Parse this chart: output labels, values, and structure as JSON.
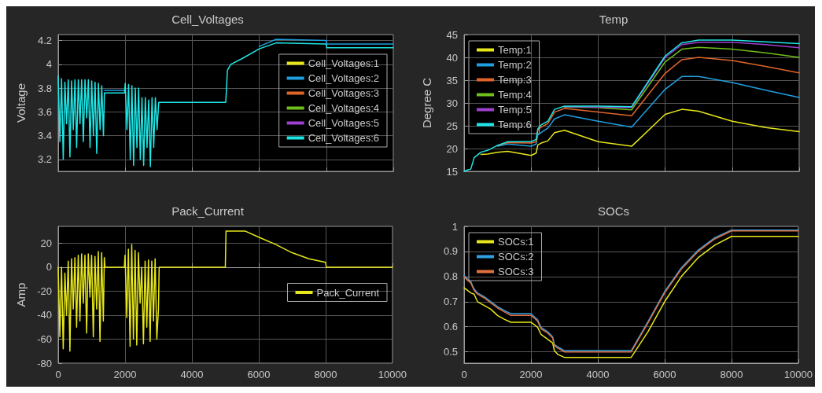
{
  "chart_data": [
    {
      "type": "line",
      "title": "Cell_Voltages",
      "ylabel": "Voltage",
      "xlim": [
        0,
        10000
      ],
      "xticks": [
        0,
        2000,
        4000,
        6000,
        8000,
        10000
      ],
      "ylim": [
        3.1,
        4.25
      ],
      "yticks": [
        3.2,
        3.4,
        3.6,
        3.8,
        4,
        4.2
      ],
      "grid": true,
      "legend": "right",
      "marker": "none",
      "line_style": "solid",
      "tick_labels": "y",
      "x": [
        0,
        50,
        100,
        150,
        200,
        250,
        300,
        350,
        400,
        450,
        500,
        550,
        600,
        650,
        700,
        750,
        800,
        850,
        900,
        950,
        1000,
        1050,
        1100,
        1150,
        1200,
        1250,
        1300,
        1350,
        1380,
        1980,
        2000,
        2050,
        2100,
        2150,
        2200,
        2250,
        2300,
        2350,
        2400,
        2450,
        2500,
        2550,
        2600,
        2650,
        2700,
        2750,
        2800,
        2850,
        2900,
        2950,
        3000,
        5000,
        5050,
        5150,
        5500,
        6000,
        6500,
        8000,
        8010,
        10000
      ],
      "series": [
        {
          "name": "Cell_Voltages:1",
          "color": "#e6e61a",
          "values": [
            null,
            null,
            null,
            null,
            null,
            null,
            null,
            null,
            null,
            null,
            null,
            null,
            null,
            null,
            null,
            null,
            null,
            null,
            null,
            null,
            null,
            null,
            null,
            null,
            null,
            null,
            null,
            null,
            null,
            null,
            null,
            null,
            null,
            null,
            null,
            null,
            null,
            null,
            null,
            null,
            null,
            null,
            null,
            null,
            null,
            null,
            null,
            null,
            null,
            null,
            null,
            null,
            null,
            null,
            null,
            null,
            null,
            null,
            null,
            null
          ]
        },
        {
          "name": "Cell_Voltages:2",
          "color": "#1f9fe0",
          "values": [
            null,
            null,
            null,
            null,
            null,
            null,
            null,
            null,
            null,
            null,
            null,
            null,
            null,
            null,
            null,
            null,
            null,
            null,
            null,
            null,
            null,
            null,
            null,
            null,
            null,
            null,
            null,
            null,
            3.78,
            3.78,
            null,
            null,
            null,
            null,
            null,
            null,
            null,
            null,
            null,
            null,
            null,
            null,
            null,
            null,
            null,
            null,
            null,
            null,
            null,
            null,
            null,
            null,
            null,
            null,
            null,
            4.15,
            4.21,
            4.2,
            4.17,
            4.17
          ]
        },
        {
          "name": "Cell_Voltages:3",
          "color": "#e0642a",
          "values": [
            null,
            null,
            null,
            null,
            null,
            null,
            null,
            null,
            null,
            null,
            null,
            null,
            null,
            null,
            null,
            null,
            null,
            null,
            null,
            null,
            null,
            null,
            null,
            null,
            null,
            null,
            null,
            null,
            null,
            null,
            null,
            null,
            null,
            null,
            null,
            null,
            null,
            null,
            null,
            null,
            null,
            null,
            null,
            null,
            null,
            null,
            null,
            null,
            null,
            null,
            null,
            null,
            null,
            null,
            null,
            null,
            null,
            null,
            null,
            null
          ]
        },
        {
          "name": "Cell_Voltages:4",
          "color": "#6fbf1a",
          "values": [
            null,
            null,
            null,
            null,
            null,
            null,
            null,
            null,
            null,
            null,
            null,
            null,
            null,
            null,
            null,
            null,
            null,
            null,
            null,
            null,
            null,
            null,
            null,
            null,
            null,
            null,
            null,
            null,
            null,
            null,
            null,
            null,
            null,
            null,
            null,
            null,
            null,
            null,
            null,
            null,
            null,
            null,
            null,
            null,
            null,
            null,
            null,
            null,
            null,
            null,
            null,
            null,
            null,
            null,
            null,
            null,
            null,
            null,
            null,
            null
          ]
        },
        {
          "name": "Cell_Voltages:5",
          "color": "#a040d0",
          "values": [
            null,
            null,
            null,
            null,
            null,
            null,
            null,
            null,
            null,
            null,
            null,
            null,
            null,
            null,
            null,
            null,
            null,
            null,
            null,
            null,
            null,
            null,
            null,
            null,
            null,
            null,
            null,
            null,
            null,
            null,
            null,
            null,
            null,
            null,
            null,
            null,
            null,
            null,
            null,
            null,
            null,
            null,
            null,
            null,
            null,
            null,
            null,
            null,
            null,
            null,
            null,
            null,
            null,
            null,
            null,
            null,
            null,
            null,
            null,
            null
          ]
        },
        {
          "name": "Cell_Voltages:6",
          "color": "#1ee6e6",
          "values": [
            3.9,
            3.35,
            3.88,
            3.2,
            3.85,
            3.5,
            3.87,
            3.22,
            3.86,
            3.45,
            3.87,
            3.3,
            3.87,
            3.5,
            3.87,
            3.35,
            3.87,
            3.55,
            3.87,
            3.3,
            3.86,
            3.4,
            3.85,
            3.25,
            3.84,
            3.45,
            3.82,
            3.4,
            3.76,
            3.76,
            3.84,
            3.45,
            3.83,
            3.2,
            3.82,
            3.15,
            3.8,
            3.3,
            3.8,
            3.2,
            3.72,
            3.15,
            3.72,
            3.3,
            3.7,
            3.14,
            3.72,
            3.3,
            3.72,
            3.45,
            3.68,
            3.68,
            3.95,
            4.0,
            4.05,
            4.13,
            4.18,
            4.17,
            4.14,
            4.14
          ]
        }
      ]
    },
    {
      "type": "line",
      "title": "Temp",
      "ylabel": "Degree C",
      "xlim": [
        0,
        10000
      ],
      "xticks": [
        0,
        2000,
        4000,
        6000,
        8000,
        10000
      ],
      "ylim": [
        15,
        45
      ],
      "yticks": [
        15,
        20,
        25,
        30,
        35,
        40,
        45
      ],
      "grid": true,
      "legend": "top left",
      "marker": "none",
      "line_style": "solid",
      "tick_labels": "y",
      "x": [
        0,
        100,
        200,
        300,
        500,
        700,
        1000,
        1300,
        2000,
        2150,
        2200,
        2300,
        2500,
        2700,
        3000,
        4000,
        5000,
        6000,
        6500,
        7000,
        8000,
        9000,
        10000
      ],
      "series": [
        {
          "name": "Temp:1",
          "color": "#e6e61a",
          "values": [
            null,
            null,
            null,
            null,
            18.7,
            18.8,
            19.2,
            19.4,
            18.5,
            19,
            20.8,
            21.2,
            21.7,
            23.5,
            24,
            21.5,
            20.5,
            27.5,
            28.6,
            28.2,
            26,
            24.6,
            23.7
          ]
        },
        {
          "name": "Temp:2",
          "color": "#1f9fe0",
          "values": [
            null,
            null,
            null,
            null,
            null,
            null,
            20.5,
            21,
            20.5,
            21,
            23,
            23.5,
            24.5,
            26.5,
            27.4,
            26,
            24.7,
            33,
            35.8,
            35.8,
            34.5,
            32.8,
            31.2
          ]
        },
        {
          "name": "Temp:3",
          "color": "#e0642a",
          "values": [
            null,
            null,
            null,
            null,
            null,
            null,
            20.7,
            21.3,
            21.2,
            21.5,
            24,
            24.7,
            25.5,
            28,
            28.8,
            28,
            27.2,
            36.5,
            39.5,
            40,
            39.3,
            38,
            36.6
          ]
        },
        {
          "name": "Temp:4",
          "color": "#6fbf1a",
          "values": [
            null,
            null,
            null,
            null,
            null,
            null,
            null,
            null,
            null,
            null,
            null,
            null,
            null,
            null,
            29.1,
            29,
            28.5,
            39,
            41.8,
            42.2,
            41.8,
            41,
            40
          ]
        },
        {
          "name": "Temp:5",
          "color": "#a040d0",
          "values": [
            null,
            null,
            null,
            null,
            null,
            null,
            null,
            null,
            null,
            null,
            null,
            null,
            null,
            null,
            29.2,
            29.1,
            29,
            40,
            42.8,
            43.3,
            43.3,
            42.8,
            42.1
          ]
        },
        {
          "name": "Temp:6",
          "color": "#1ee6e6",
          "values": [
            15,
            15.3,
            15.5,
            18,
            19.2,
            19.6,
            20.7,
            21.5,
            21.5,
            22,
            24.3,
            25.2,
            26,
            28.6,
            29.3,
            29.3,
            29.2,
            40.3,
            43.2,
            43.8,
            43.8,
            43.4,
            43
          ]
        }
      ]
    },
    {
      "type": "line",
      "title": "Pack_Current",
      "ylabel": "Amp",
      "xlim": [
        0,
        10000
      ],
      "xticks": [
        0,
        2000,
        4000,
        6000,
        8000,
        10000
      ],
      "ylim": [
        -80,
        34
      ],
      "yticks": [
        -80,
        -60,
        -40,
        -20,
        0,
        20
      ],
      "grid": true,
      "legend": "right",
      "marker": "none",
      "line_style": "solid",
      "x": [
        0,
        50,
        100,
        150,
        200,
        250,
        300,
        350,
        400,
        450,
        500,
        550,
        600,
        650,
        700,
        750,
        800,
        850,
        900,
        950,
        1000,
        1050,
        1100,
        1150,
        1200,
        1250,
        1300,
        1350,
        1380,
        1400,
        1980,
        2000,
        2050,
        2100,
        2150,
        2200,
        2250,
        2300,
        2350,
        2400,
        2450,
        2500,
        2550,
        2600,
        2650,
        2700,
        2750,
        2800,
        2850,
        2900,
        2950,
        3000,
        3020,
        5000,
        5020,
        5600,
        6000,
        6500,
        7000,
        7500,
        8000,
        8020,
        10000
      ],
      "series": [
        {
          "name": "Pack_Current",
          "color": "#e6e61a",
          "values": [
            0,
            -58,
            0,
            -68,
            -5,
            -40,
            5,
            -70,
            7,
            -35,
            8,
            -50,
            10,
            -45,
            11,
            -30,
            10,
            -55,
            11,
            -25,
            10,
            -58,
            9,
            -35,
            13,
            -62,
            12,
            -45,
            8,
            0,
            0,
            10,
            -42,
            15,
            -66,
            19,
            -60,
            14,
            -65,
            12,
            -30,
            0,
            -64,
            5,
            -50,
            6,
            -62,
            5,
            -45,
            7,
            -60,
            -35,
            0,
            0,
            30,
            30,
            25,
            19,
            12,
            7,
            4,
            0,
            0
          ]
        }
      ]
    },
    {
      "type": "line",
      "title": "SOCs",
      "xlim": [
        0,
        10000
      ],
      "xticks": [
        0,
        2000,
        4000,
        6000,
        8000,
        10000
      ],
      "ylim": [
        0.455,
        1
      ],
      "yticks": [
        0.5,
        0.6,
        0.7,
        0.8,
        0.9,
        1
      ],
      "grid": true,
      "legend": "top left",
      "marker": "none",
      "line_style": "solid",
      "x": [
        0,
        100,
        200,
        300,
        400,
        600,
        800,
        1000,
        1200,
        1400,
        2000,
        2100,
        2200,
        2300,
        2500,
        2650,
        2700,
        2800,
        3000,
        5000,
        5500,
        6000,
        6500,
        7000,
        7500,
        8000,
        10000
      ],
      "series": [
        {
          "name": "SOCs:1",
          "color": "#e6e61a",
          "values": [
            0.755,
            0.745,
            0.735,
            0.73,
            0.7,
            0.685,
            0.67,
            0.645,
            0.63,
            0.618,
            0.618,
            0.608,
            0.598,
            0.57,
            0.55,
            0.535,
            0.505,
            0.49,
            0.478,
            0.478,
            0.58,
            0.7,
            0.8,
            0.875,
            0.925,
            0.96,
            0.96
          ]
        },
        {
          "name": "SOCs:2",
          "color": "#2fa0e0",
          "values": [
            0.805,
            0.79,
            0.78,
            0.75,
            0.735,
            0.72,
            0.7,
            0.68,
            0.665,
            0.652,
            0.652,
            0.64,
            0.628,
            0.598,
            0.58,
            0.56,
            0.53,
            0.52,
            0.505,
            0.505,
            0.62,
            0.74,
            0.835,
            0.905,
            0.955,
            0.985,
            0.985
          ]
        },
        {
          "name": "SOCs:3",
          "color": "#e07040",
          "values": [
            0.8,
            0.785,
            0.775,
            0.745,
            0.73,
            0.715,
            0.695,
            0.675,
            0.66,
            0.645,
            0.645,
            0.635,
            0.622,
            0.592,
            0.575,
            0.555,
            0.525,
            0.515,
            0.5,
            0.5,
            0.615,
            0.735,
            0.83,
            0.9,
            0.95,
            0.982,
            0.982
          ]
        }
      ]
    }
  ]
}
